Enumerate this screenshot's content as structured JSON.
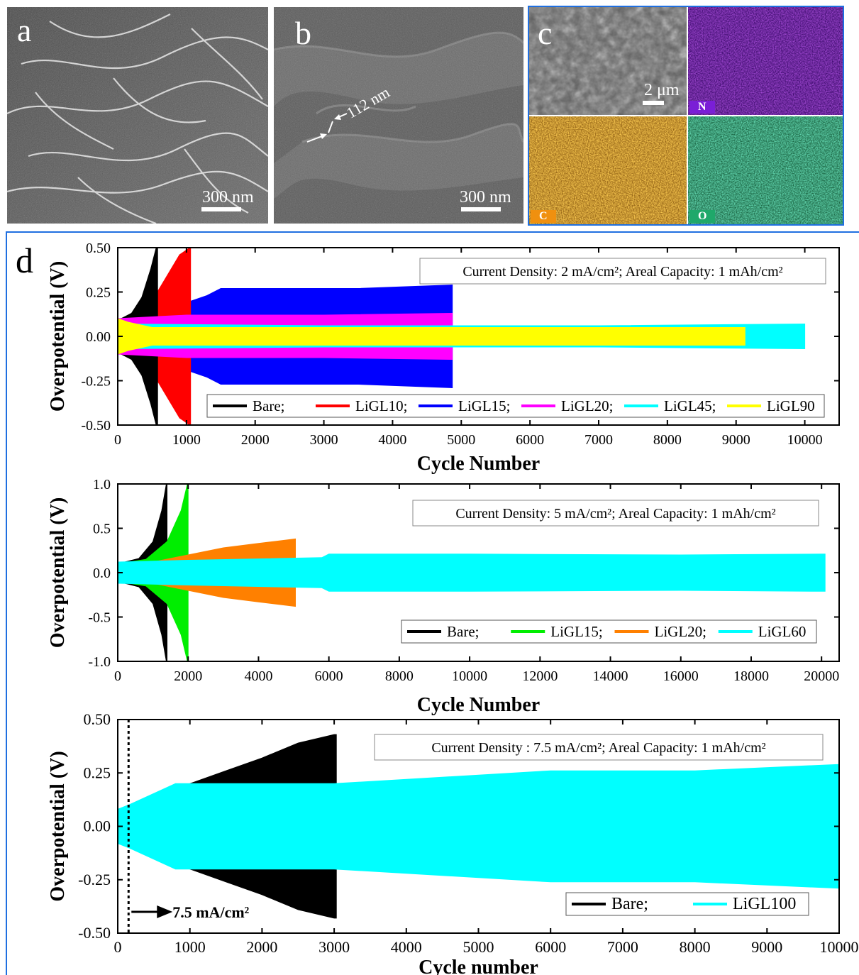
{
  "panels": {
    "a": {
      "letter": "a",
      "scale": "300 nm"
    },
    "b": {
      "letter": "b",
      "scale": "300 nm",
      "annotation": "112 nm"
    },
    "c": {
      "letter": "c",
      "scale": "2 μm",
      "maps": [
        "N",
        "C",
        "O"
      ],
      "map_colors": {
        "N": "#7a1fd6",
        "C": "#f0900f",
        "O": "#1fa86a"
      }
    },
    "d": {
      "letter": "d"
    }
  },
  "chart_data": [
    {
      "type": "line",
      "title": "",
      "annotation_box": "Current Density: 2 mA/cm²; Areal Capacity: 1 mAh/cm²",
      "xlabel": "Cycle Number",
      "ylabel": "Overpotential (V)",
      "xlim": [
        0,
        10500
      ],
      "ylim": [
        -0.5,
        0.5
      ],
      "xticks": [
        0,
        1000,
        2000,
        3000,
        4000,
        5000,
        6000,
        7000,
        8000,
        9000,
        10000
      ],
      "yticks": [
        -0.5,
        -0.25,
        0,
        0.25,
        0.5
      ],
      "ytick_labels": [
        "-0.50",
        "-0.25",
        "0.00",
        "0.25",
        "0.50"
      ],
      "legend_position": "bottom-right",
      "legend": [
        "Bare;",
        "LiGL10;",
        "LiGL15;",
        "LiGL20;",
        "LiGL45;",
        "LiGL90"
      ],
      "series": [
        {
          "name": "Bare",
          "color": "#000000",
          "envelope": [
            [
              0,
              0.09
            ],
            [
              200,
              0.13
            ],
            [
              350,
              0.22
            ],
            [
              480,
              0.38
            ],
            [
              560,
              0.5
            ],
            [
              580,
              0.5
            ]
          ]
        },
        {
          "name": "LiGL10",
          "color": "#ff0000",
          "envelope": [
            [
              0,
              0.08
            ],
            [
              300,
              0.13
            ],
            [
              500,
              0.2
            ],
            [
              700,
              0.33
            ],
            [
              900,
              0.46
            ],
            [
              1050,
              0.5
            ],
            [
              1060,
              0.5
            ]
          ]
        },
        {
          "name": "LiGL15",
          "color": "#0000ff",
          "envelope": [
            [
              0,
              0.08
            ],
            [
              700,
              0.15
            ],
            [
              1300,
              0.23
            ],
            [
              1500,
              0.27
            ],
            [
              2500,
              0.27
            ],
            [
              3500,
              0.27
            ],
            [
              4870,
              0.29
            ]
          ]
        },
        {
          "name": "LiGL20",
          "color": "#ff00ff",
          "envelope": [
            [
              0,
              0.1
            ],
            [
              1000,
              0.12
            ],
            [
              3000,
              0.12
            ],
            [
              4870,
              0.13
            ]
          ]
        },
        {
          "name": "LiGL45",
          "color": "#00ffff",
          "envelope": [
            [
              0,
              0.07
            ],
            [
              3000,
              0.06
            ],
            [
              7000,
              0.06
            ],
            [
              10000,
              0.07
            ]
          ]
        },
        {
          "name": "LiGL90",
          "color": "#ffff00",
          "envelope": [
            [
              0,
              0.1
            ],
            [
              150,
              0.08
            ],
            [
              500,
              0.05
            ],
            [
              3000,
              0.05
            ],
            [
              6000,
              0.05
            ],
            [
              9130,
              0.05
            ]
          ]
        }
      ]
    },
    {
      "type": "line",
      "title": "",
      "annotation_box": "Current Density: 5 mA/cm²; Areal Capacity: 1 mAh/cm²",
      "xlabel": "Cycle Number",
      "ylabel": "Overpotential (V)",
      "xlim": [
        0,
        20500
      ],
      "ylim": [
        -1,
        1
      ],
      "xticks": [
        0,
        2000,
        4000,
        6000,
        8000,
        10000,
        12000,
        14000,
        16000,
        18000,
        20000
      ],
      "yticks": [
        -1,
        -0.5,
        0,
        0.5,
        1
      ],
      "ytick_labels": [
        "-1.0",
        "-0.5",
        "0.0",
        "0.5",
        "1.0"
      ],
      "legend_position": "bottom-right",
      "legend": [
        "Bare;",
        "LiGL15;",
        "LiGL20;",
        "LiGL60"
      ],
      "series": [
        {
          "name": "Bare",
          "color": "#000000",
          "envelope": [
            [
              0,
              0.1
            ],
            [
              600,
              0.16
            ],
            [
              1000,
              0.35
            ],
            [
              1250,
              0.7
            ],
            [
              1380,
              1.0
            ],
            [
              1400,
              1.0
            ]
          ]
        },
        {
          "name": "LiGL15",
          "color": "#00ee00",
          "envelope": [
            [
              0,
              0.1
            ],
            [
              800,
              0.15
            ],
            [
              1400,
              0.35
            ],
            [
              1800,
              0.7
            ],
            [
              1980,
              1.0
            ],
            [
              2000,
              1.0
            ]
          ]
        },
        {
          "name": "LiGL20",
          "color": "#ff8000",
          "envelope": [
            [
              0,
              0.1
            ],
            [
              1000,
              0.12
            ],
            [
              2000,
              0.2
            ],
            [
              3000,
              0.28
            ],
            [
              4000,
              0.33
            ],
            [
              5050,
              0.38
            ]
          ]
        },
        {
          "name": "LiGL60",
          "color": "#00ffff",
          "envelope": [
            [
              0,
              0.12
            ],
            [
              2000,
              0.14
            ],
            [
              5800,
              0.17
            ],
            [
              6000,
              0.21
            ],
            [
              10000,
              0.21
            ],
            [
              16000,
              0.2
            ],
            [
              20000,
              0.21
            ],
            [
              20100,
              0.21
            ]
          ]
        }
      ]
    },
    {
      "type": "line",
      "title": "",
      "annotation_box": "Current Density : 7.5 mA/cm²; Areal Capacity: 1 mAh/cm²",
      "annotation_arrow": "7.5 mA/cm²",
      "marker_x": 150,
      "xlabel": "Cycle number",
      "ylabel": "Overpotential (V)",
      "xlim": [
        0,
        10000
      ],
      "ylim": [
        -0.5,
        0.5
      ],
      "xticks": [
        0,
        1000,
        2000,
        3000,
        4000,
        5000,
        6000,
        7000,
        8000,
        9000,
        10000
      ],
      "xtick_labels": [
        "0",
        "1000",
        "2000",
        "3000",
        "4000",
        "5000",
        "6000",
        "7000",
        "8000",
        "9000",
        "10000"
      ],
      "yticks": [
        -0.5,
        -0.25,
        0,
        0.25,
        0.5
      ],
      "ytick_labels": [
        "-0.50",
        "-0.25",
        "0.00",
        "0.25",
        "0.50"
      ],
      "legend_position": "bottom-right",
      "legend": [
        "Bare;",
        "LiGL100"
      ],
      "series": [
        {
          "name": "Bare",
          "color": "#000000",
          "envelope": [
            [
              150,
              0.08
            ],
            [
              500,
              0.12
            ],
            [
              1000,
              0.2
            ],
            [
              1500,
              0.26
            ],
            [
              2000,
              0.32
            ],
            [
              2500,
              0.39
            ],
            [
              3000,
              0.43
            ],
            [
              3030,
              0.43
            ]
          ]
        },
        {
          "name": "LiGL100",
          "color": "#00ffff",
          "envelope": [
            [
              0,
              0.08
            ],
            [
              150,
              0.1
            ],
            [
              800,
              0.2
            ],
            [
              3000,
              0.2
            ],
            [
              6000,
              0.26
            ],
            [
              8000,
              0.26
            ],
            [
              10000,
              0.29
            ]
          ]
        }
      ]
    }
  ]
}
